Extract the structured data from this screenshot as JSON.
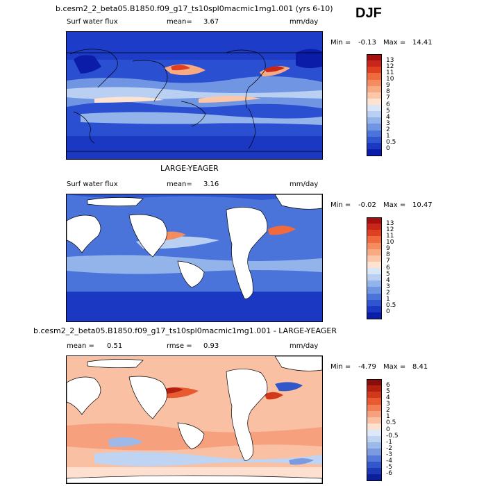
{
  "season": "DJF",
  "panels": [
    {
      "title": "b.cesm2_2_beta05.B1850.f09_g17_ts10spl0macmic1mg1.001 (yrs 6-10)",
      "subtitle": "",
      "field": "Surf water flux",
      "mean_label": "mean=",
      "mean_value": "3.67",
      "stat2_label": "",
      "stat2_value": "",
      "units": "mm/day",
      "min_label": "Min =",
      "min_value": "-0.13",
      "max_label": "Max =",
      "max_value": "14.41",
      "land_masked": false,
      "colorbar": {
        "labels": [
          "13",
          "12",
          "11",
          "10",
          "9",
          "8",
          "7",
          "6",
          "5",
          "4",
          "3",
          "2",
          "1",
          "0.5",
          "0"
        ],
        "colors": [
          "#a50f0f",
          "#c8261a",
          "#e0401f",
          "#ef6a3c",
          "#f48c5f",
          "#f8aa82",
          "#fbc7a8",
          "#fde3d0",
          "#d9e6f7",
          "#b9d0f2",
          "#93b4eb",
          "#6f95e3",
          "#4a74da",
          "#2f55cf",
          "#1a38c2",
          "#0a1ca8"
        ]
      }
    },
    {
      "title": "",
      "subtitle": "LARGE-YEAGER",
      "field": "Surf water flux",
      "mean_label": "mean=",
      "mean_value": "3.16",
      "stat2_label": "",
      "stat2_value": "",
      "units": "mm/day",
      "min_label": "Min =",
      "min_value": "-0.02",
      "max_label": "Max =",
      "max_value": "10.47",
      "land_masked": true,
      "colorbar": {
        "labels": [
          "13",
          "12",
          "11",
          "10",
          "9",
          "8",
          "7",
          "6",
          "5",
          "4",
          "3",
          "2",
          "1",
          "0.5",
          "0"
        ],
        "colors": [
          "#a50f0f",
          "#c8261a",
          "#e0401f",
          "#ef6a3c",
          "#f48c5f",
          "#f8aa82",
          "#fbc7a8",
          "#fde3d0",
          "#d9e6f7",
          "#b9d0f2",
          "#93b4eb",
          "#6f95e3",
          "#4a74da",
          "#2f55cf",
          "#1a38c2",
          "#0a1ca8"
        ]
      }
    },
    {
      "title": "b.cesm2_2_beta05.B1850.f09_g17_ts10spl0macmic1mg1.001 - LARGE-YEAGER",
      "subtitle": "",
      "field": "",
      "mean_label": "mean =",
      "mean_value": "0.51",
      "stat2_label": "rmse =",
      "stat2_value": "0.93",
      "units": "mm/day",
      "min_label": "Min =",
      "min_value": "-4.79",
      "max_label": "Max =",
      "max_value": "8.41",
      "land_masked": true,
      "colorbar": {
        "labels": [
          "6",
          "5",
          "4",
          "3",
          "2",
          "1",
          "0.5",
          "0",
          "-0.5",
          "-1",
          "-2",
          "-3",
          "-4",
          "-5",
          "-6"
        ],
        "colors": [
          "#8a0c0c",
          "#b3200f",
          "#d2381a",
          "#e85a30",
          "#f27e55",
          "#f6a07d",
          "#f9c0a3",
          "#fde0d0",
          "#dde9f8",
          "#bfd3f2",
          "#9db9ea",
          "#7a9be2",
          "#5479d8",
          "#3257cb",
          "#1c3ab8",
          "#0b1f9a"
        ]
      }
    }
  ]
}
